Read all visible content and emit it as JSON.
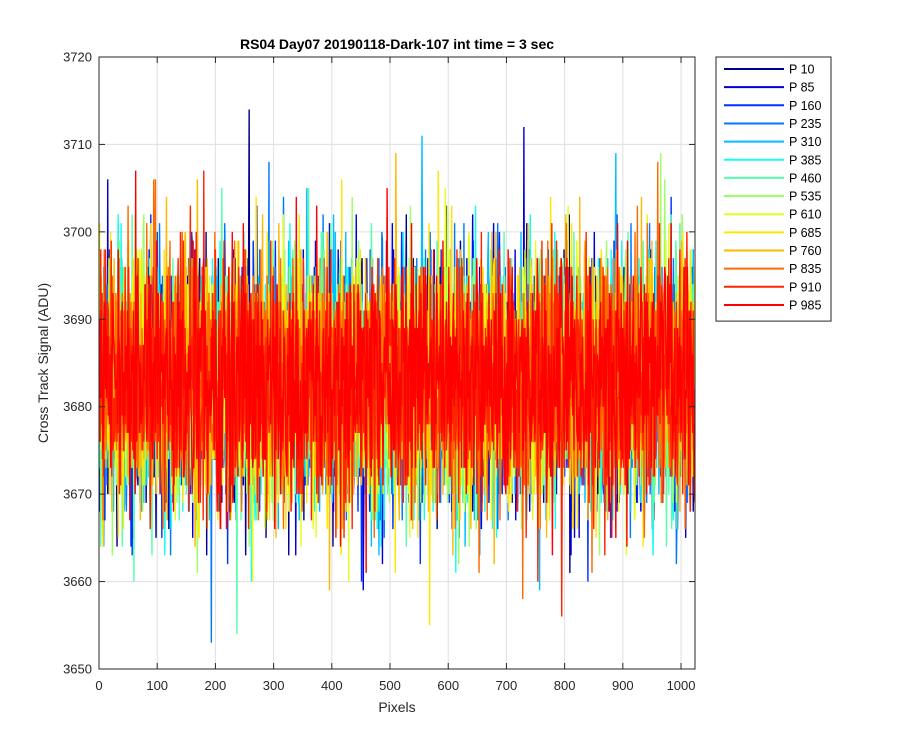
{
  "chart_data": {
    "type": "line",
    "title": "RS04 Day07 20190118-Dark-107 int time = 3 sec",
    "xlabel": "Pixels",
    "ylabel": "Cross Track Signal (ADU)",
    "xlim": [
      0,
      1024
    ],
    "ylim": [
      3650,
      3720
    ],
    "xticks": [
      0,
      100,
      200,
      300,
      400,
      500,
      600,
      700,
      800,
      900,
      1000
    ],
    "yticks": [
      3650,
      3660,
      3670,
      3680,
      3690,
      3700,
      3710,
      3720
    ],
    "grid": true,
    "legend_position": "outside-right-top",
    "x_range": [
      1,
      1024
    ],
    "noise_model": {
      "mean": 3683,
      "std_dev": 7,
      "min": 3653,
      "max": 3714
    },
    "series": [
      {
        "name": "P 10",
        "color": "#00008f"
      },
      {
        "name": "P 85",
        "color": "#0000d6"
      },
      {
        "name": "P 160",
        "color": "#0030ff"
      },
      {
        "name": "P 235",
        "color": "#0078ff"
      },
      {
        "name": "P 310",
        "color": "#00beff"
      },
      {
        "name": "P 385",
        "color": "#10ffef"
      },
      {
        "name": "P 460",
        "color": "#56ffa9"
      },
      {
        "name": "P 535",
        "color": "#9cff63"
      },
      {
        "name": "P 610",
        "color": "#e2ff1d"
      },
      {
        "name": "P 685",
        "color": "#ffe600"
      },
      {
        "name": "P 760",
        "color": "#ffb900"
      },
      {
        "name": "P 835",
        "color": "#ff6a00"
      },
      {
        "name": "P 910",
        "color": "#ff2400"
      },
      {
        "name": "P 985",
        "color": "#ff0000"
      }
    ],
    "notable_spikes": [
      {
        "x": 258,
        "y": 3714
      },
      {
        "x": 193,
        "y": 3653
      },
      {
        "x": 237,
        "y": 3654
      },
      {
        "x": 568,
        "y": 3655
      },
      {
        "x": 795,
        "y": 3656
      },
      {
        "x": 730,
        "y": 3712
      },
      {
        "x": 555,
        "y": 3711
      },
      {
        "x": 965,
        "y": 3709
      },
      {
        "x": 510,
        "y": 3709
      }
    ]
  }
}
